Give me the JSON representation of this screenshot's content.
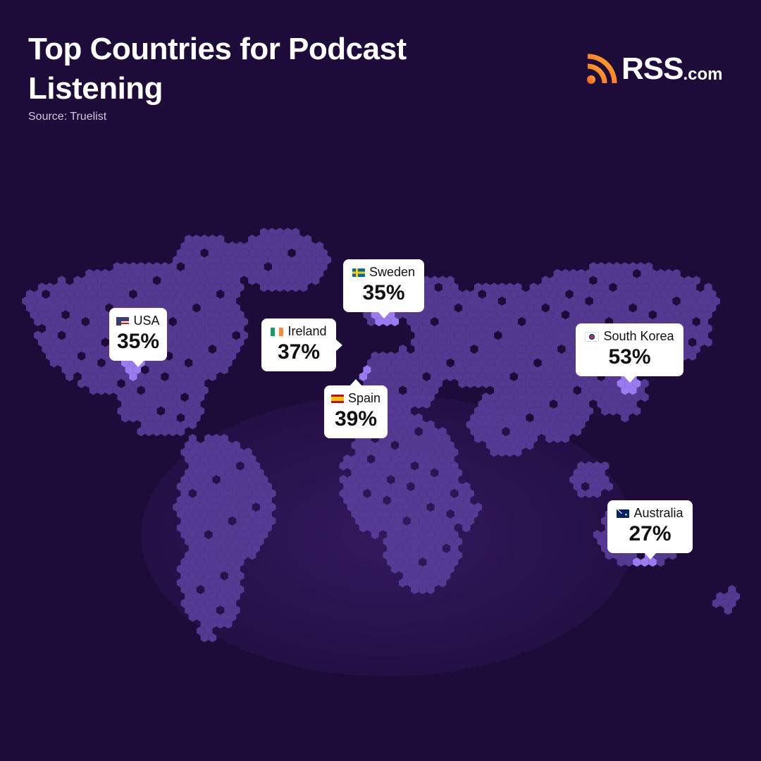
{
  "header": {
    "title": "Top Countries for Podcast Listening",
    "source": "Source: Truelist"
  },
  "logo": {
    "text": "RSS",
    "suffix": ".com",
    "icon": "rss-feed-icon",
    "gradient": [
      "#ff5a3c",
      "#ffb020"
    ]
  },
  "colors": {
    "background": "#1d0c3a",
    "hex": "#5a3f9a",
    "hex_highlight": "#9a7cf0",
    "hex_marker": "#7b55f0",
    "card": "#ffffff"
  },
  "chart_data": {
    "type": "table",
    "title": "Top Countries for Podcast Listening",
    "subtitle": "Source: Truelist",
    "categories": [
      "USA",
      "Ireland",
      "Sweden",
      "Spain",
      "South Korea",
      "Australia"
    ],
    "values": [
      35,
      37,
      35,
      39,
      53,
      27
    ],
    "unit": "%"
  },
  "cards": [
    {
      "country": "USA",
      "value": "35%",
      "flag": "us-flag-icon"
    },
    {
      "country": "Ireland",
      "value": "37%",
      "flag": "ie-flag-icon"
    },
    {
      "country": "Sweden",
      "value": "35%",
      "flag": "se-flag-icon"
    },
    {
      "country": "Spain",
      "value": "39%",
      "flag": "es-flag-icon"
    },
    {
      "country": "South Korea",
      "value": "53%",
      "flag": "kr-flag-icon"
    },
    {
      "country": "Australia",
      "value": "27%",
      "flag": "au-flag-icon"
    }
  ]
}
